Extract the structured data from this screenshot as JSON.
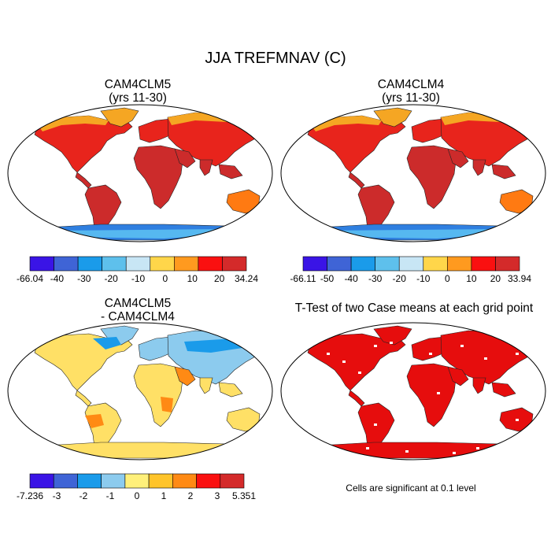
{
  "figure": {
    "title": "JJA TREFMNAV (C)"
  },
  "panels": [
    {
      "id": "case1",
      "title_line1": "CAM4CLM5",
      "title_line2": "(yrs 11-30)",
      "colorbar": {
        "colors": [
          "#3a14e6",
          "#3f64d6",
          "#1a9bea",
          "#5ec0ec",
          "#c8e6f5",
          "#ffd64a",
          "#ff9a1f",
          "#fa1010",
          "#d42a2a"
        ],
        "labels": [
          "-66.04",
          "-40",
          "-30",
          "-20",
          "-10",
          "0",
          "10",
          "20",
          "34.24"
        ]
      }
    },
    {
      "id": "case2",
      "title_line1": "CAM4CLM4",
      "title_line2": "(yrs 11-30)",
      "colorbar": {
        "colors": [
          "#3a14e6",
          "#3f64d6",
          "#1a9bea",
          "#5ec0ec",
          "#c8e6f5",
          "#ffd64a",
          "#ff9a1f",
          "#fa1010",
          "#d42a2a"
        ],
        "labels": [
          "-66.11",
          "-50",
          "-40",
          "-30",
          "-20",
          "-10",
          "0",
          "10",
          "20",
          "33.94"
        ]
      }
    },
    {
      "id": "diff",
      "title_line1": "CAM4CLM5",
      "title_line2": "- CAM4CLM4",
      "colorbar": {
        "colors": [
          "#3a14e6",
          "#3f64d6",
          "#1a9bea",
          "#8ccbee",
          "#fff07a",
          "#ffc42a",
          "#ff8a14",
          "#fa1010",
          "#d42a2a"
        ],
        "labels": [
          "-7.236",
          "-3",
          "-2",
          "-1",
          "0",
          "1",
          "2",
          "3",
          "5.351"
        ]
      }
    },
    {
      "id": "ttest",
      "title": "T-Test of two Case means at each grid point",
      "note": "Cells are significant at 0.1 level",
      "fill_color": "#e60d0d"
    }
  ],
  "map_colors": {
    "arctic": "#f5a623",
    "northern_land": "#e8241c",
    "tropics": "#cc2b2b",
    "southern_mid": "#ff7a12",
    "antarctica": "#2f7fe0",
    "antarctica_edge": "#56b8f0",
    "diff_warm": "#ffe066",
    "diff_cool": "#8ccbee",
    "diff_cold": "#1a9bea",
    "diff_hot": "#ff8a14"
  }
}
